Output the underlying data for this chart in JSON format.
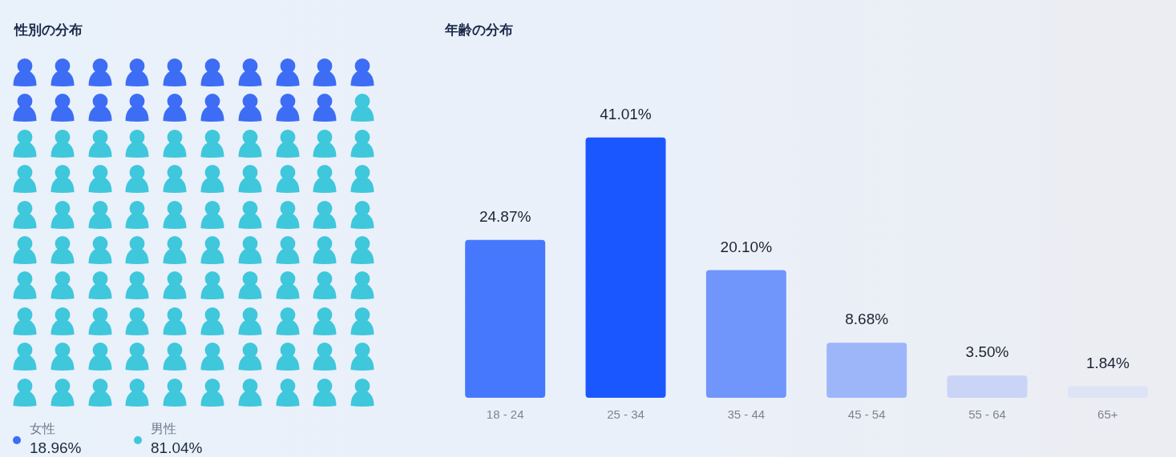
{
  "chart_data": [
    {
      "type": "other",
      "title": "性別の分布",
      "categories": [
        "女性",
        "男性"
      ],
      "values": [
        18.96,
        81.04
      ],
      "value_labels": [
        "18.96%",
        "81.04%"
      ],
      "colors": [
        "#3d6df5",
        "#3fc7dc"
      ]
    },
    {
      "type": "bar",
      "title": "年齢の分布",
      "categories": [
        "18 - 24",
        "25 - 34",
        "35 - 44",
        "45 - 54",
        "55 - 64",
        "65+"
      ],
      "values": [
        24.87,
        41.01,
        20.1,
        8.68,
        3.5,
        1.84
      ],
      "value_labels": [
        "24.87%",
        "41.01%",
        "20.10%",
        "8.68%",
        "3.50%",
        "1.84%"
      ],
      "colors": [
        "#4678fe",
        "#1a57ff",
        "#7095fb",
        "#9db5f9",
        "#c9d4f7",
        "#dee4f6"
      ],
      "tick_labels": "x"
    }
  ]
}
